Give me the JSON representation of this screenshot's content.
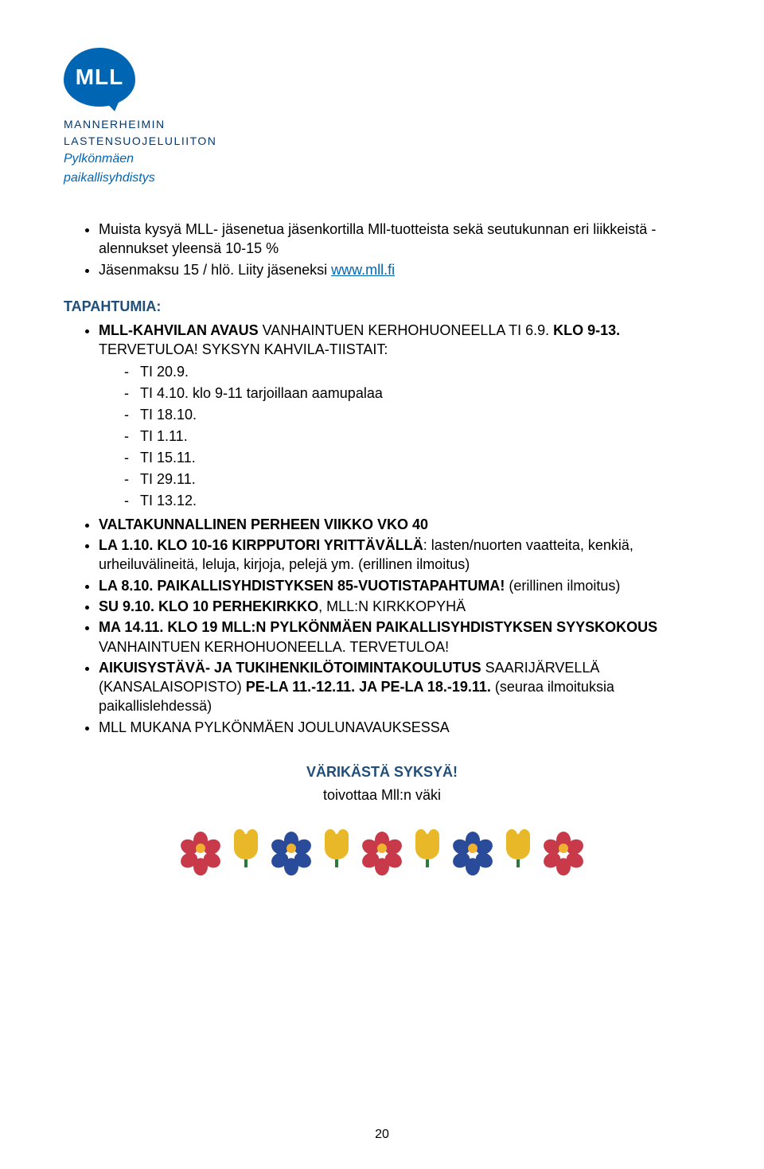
{
  "logo": {
    "text": "MLL",
    "org_line1": "MANNERHEIMIN",
    "org_line2": "LASTENSUOJELULIITON",
    "org_line3": "Pylkönmäen",
    "org_line4": "paikallisyhdistys",
    "logo_bg": "#0066b3",
    "org_color": "#003a72",
    "sub_color": "#0066b3"
  },
  "intro_bullets": [
    "Muista kysyä MLL- jäsenetua jäsenkortilla Mll-tuotteista sekä seutukunnan eri liikkeistä - alennukset yleensä 10-15 %",
    "Jäsenmaksu 15 / hlö. Liity jäseneksi "
  ],
  "join_link": "www.mll.fi",
  "section_title": "TAPAHTUMIA:",
  "events": {
    "event1": {
      "prefix": "MLL-KAHVILAN AVAUS",
      "rest": " VANHAINTUEN KERHOHUONEELLA TI 6.9. ",
      "suffix": "KLO 9-13.",
      "after": " TERVETULOA! SYKSYN KAHVILA-TIISTAIT:",
      "sub": [
        "TI 20.9.",
        "TI 4.10. klo 9-11 tarjoillaan aamupalaa",
        "TI 18.10.",
        "TI 1.11.",
        "TI 15.11.",
        "TI 29.11.",
        "TI 13.12."
      ]
    },
    "event2": "VALTAKUNNALLINEN PERHEEN VIIKKO VKO 40",
    "event3": {
      "bold1": "LA 1.10. KLO 10-16 KIRPPUTORI YRITTÄVÄLLÄ",
      "rest": ": lasten/nuorten vaatteita, kenkiä, urheiluvälineitä, leluja, kirjoja, pelejä ym. (erillinen ilmoitus)"
    },
    "event4": {
      "bold1": "LA 8.10. PAIKALLISYHDISTYKSEN 85-VUOTISTAPAHTUMA!",
      "rest": " (erillinen ilmoitus)"
    },
    "event5": {
      "bold1": "SU 9.10. KLO 10 PERHEKIRKKO",
      "rest": ", MLL:N KIRKKOPYHÄ"
    },
    "event6": {
      "bold1": "MA 14.11. KLO 19 MLL:N PYLKÖNMÄEN PAIKALLISYHDISTYKSEN SYYSKOKOUS",
      "rest": " VANHAINTUEN KERHOHUONEELLA. TERVETULOA!"
    },
    "event7": {
      "bold1": "AIKUISYSTÄVÄ- JA TUKIHENKILÖTOIMINTAKOULUTUS",
      "mid": " SAARIJÄRVELLÄ (KANSALAISOPISTO) ",
      "bold2": "PE-LA 11.-12.11. JA PE-LA 18.-19.11.",
      "rest": " (seuraa ilmoituksia paikallislehdessä)"
    },
    "event8": "MLL MUKANA PYLKÖNMÄEN JOULUNAVAUKSESSA"
  },
  "closing": {
    "line1": "VÄRIKÄSTÄ SYKSYÄ!",
    "line2": "toivottaa Mll:n väki",
    "accent": "#1f4e79"
  },
  "flowers": {
    "petal_red": "#c83a4a",
    "petal_blue": "#2a4a9a",
    "center": "#f0b030",
    "tulip_yellow": "#e8b828",
    "tulip_stem": "#2a7a3a"
  },
  "page_number": "20"
}
